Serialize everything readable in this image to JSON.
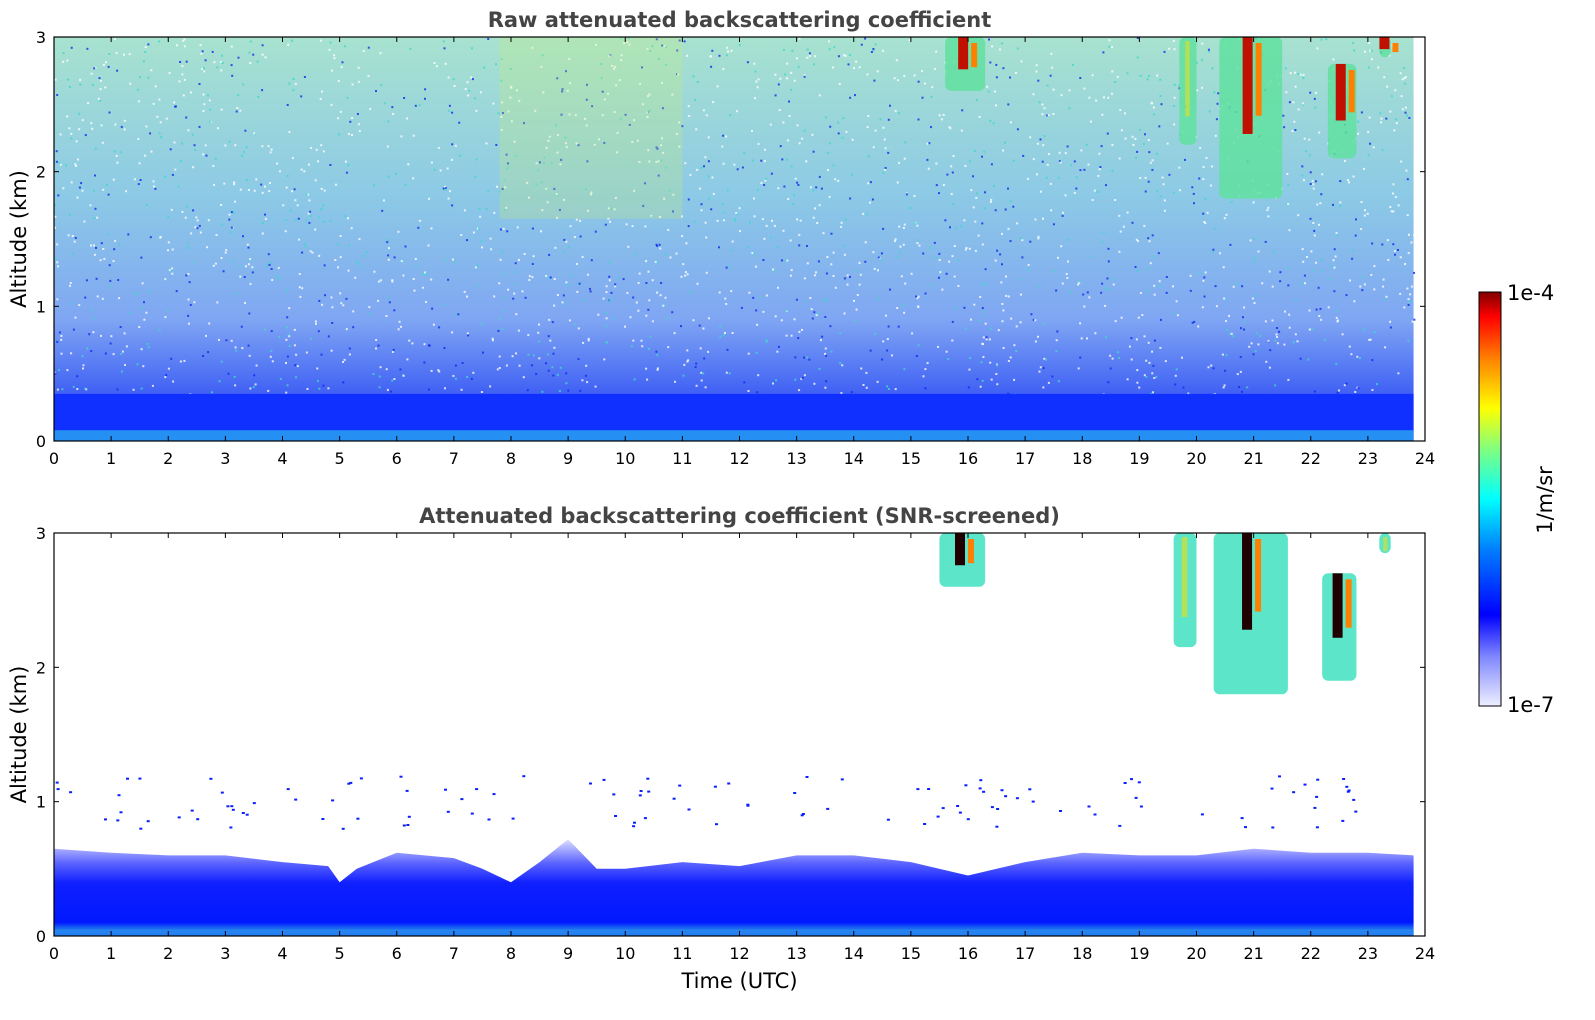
{
  "chart_data": [
    {
      "type": "heatmap",
      "title": "Raw attenuated backscattering coefficient",
      "xlabel": "",
      "ylabel": "Altitude (km)",
      "x_ticks": [
        "0",
        "1",
        "2",
        "3",
        "4",
        "5",
        "6",
        "7",
        "8",
        "9",
        "10",
        "11",
        "12",
        "13",
        "14",
        "15",
        "16",
        "17",
        "18",
        "19",
        "20",
        "21",
        "22",
        "23",
        "24"
      ],
      "y_ticks": [
        "0",
        "1",
        "2",
        "3"
      ],
      "xlim": [
        0,
        24
      ],
      "ylim": [
        0,
        3
      ],
      "data_extent_x": [
        0,
        23.8
      ],
      "colorbar": {
        "label": "1/m/sr",
        "min": "1e-7",
        "max": "1e-4",
        "scale": "log"
      },
      "features": [
        {
          "kind": "surface_layer",
          "x_range": [
            0,
            23.8
          ],
          "top_km": 0.35,
          "level": "~1e-6"
        },
        {
          "kind": "noise_background",
          "x_range": [
            0,
            23.8
          ],
          "alt_range_km": [
            0.35,
            3.0
          ],
          "level": "~1e-6 to 1e-5"
        },
        {
          "kind": "cloud",
          "x_range": [
            15.6,
            16.3
          ],
          "alt_range_km": [
            2.6,
            3.0
          ],
          "level": "~1e-4"
        },
        {
          "kind": "cloud",
          "x_range": [
            19.7,
            20.0
          ],
          "alt_range_km": [
            2.2,
            3.0
          ],
          "level": "~1e-5"
        },
        {
          "kind": "cloud",
          "x_range": [
            20.4,
            21.5
          ],
          "alt_range_km": [
            1.8,
            3.0
          ],
          "level": "~1e-5 to 1e-4"
        },
        {
          "kind": "cloud",
          "x_range": [
            22.3,
            22.8
          ],
          "alt_range_km": [
            2.1,
            2.8
          ],
          "level": "~1e-5 to 1e-4"
        },
        {
          "kind": "cloud",
          "x_range": [
            23.2,
            23.4
          ],
          "alt_range_km": [
            2.85,
            3.0
          ],
          "level": "~1e-4"
        }
      ]
    },
    {
      "type": "heatmap",
      "title": "Attenuated backscattering coefficient (SNR-screened)",
      "xlabel": "Time (UTC)",
      "ylabel": "Altitude (km)",
      "x_ticks": [
        "0",
        "1",
        "2",
        "3",
        "4",
        "5",
        "6",
        "7",
        "8",
        "9",
        "10",
        "11",
        "12",
        "13",
        "14",
        "15",
        "16",
        "17",
        "18",
        "19",
        "20",
        "21",
        "22",
        "23",
        "24"
      ],
      "y_ticks": [
        "0",
        "1",
        "2",
        "3"
      ],
      "xlim": [
        0,
        24
      ],
      "ylim": [
        0,
        3
      ],
      "data_extent_x": [
        0,
        23.8
      ],
      "colorbar": {
        "label": "1/m/sr",
        "min": "1e-7",
        "max": "1e-4",
        "scale": "log"
      },
      "boundary_layer_top_km": [
        [
          0,
          0.65
        ],
        [
          1,
          0.62
        ],
        [
          2,
          0.6
        ],
        [
          3,
          0.6
        ],
        [
          4,
          0.55
        ],
        [
          4.8,
          0.52
        ],
        [
          5.0,
          0.4
        ],
        [
          5.3,
          0.5
        ],
        [
          6,
          0.62
        ],
        [
          7,
          0.58
        ],
        [
          7.5,
          0.5
        ],
        [
          8.0,
          0.4
        ],
        [
          8.5,
          0.55
        ],
        [
          9.0,
          0.72
        ],
        [
          9.5,
          0.5
        ],
        [
          10,
          0.5
        ],
        [
          11,
          0.55
        ],
        [
          12,
          0.52
        ],
        [
          13,
          0.6
        ],
        [
          14,
          0.6
        ],
        [
          15,
          0.55
        ],
        [
          16,
          0.45
        ],
        [
          17,
          0.55
        ],
        [
          18,
          0.62
        ],
        [
          19,
          0.6
        ],
        [
          20,
          0.6
        ],
        [
          21,
          0.65
        ],
        [
          22,
          0.62
        ],
        [
          23,
          0.62
        ],
        [
          23.8,
          0.6
        ]
      ],
      "features": [
        {
          "kind": "cloud",
          "x_range": [
            15.5,
            16.3
          ],
          "alt_range_km": [
            2.6,
            3.0
          ],
          "level": "above 1e-4"
        },
        {
          "kind": "cloud",
          "x_range": [
            19.6,
            20.0
          ],
          "alt_range_km": [
            2.15,
            3.0
          ],
          "level": "~1e-5"
        },
        {
          "kind": "cloud",
          "x_range": [
            20.3,
            21.6
          ],
          "alt_range_km": [
            1.8,
            3.0
          ],
          "level": "~1e-5 to above 1e-4"
        },
        {
          "kind": "cloud",
          "x_range": [
            22.2,
            22.8
          ],
          "alt_range_km": [
            1.9,
            2.7
          ],
          "level": "~1e-5 to above 1e-4"
        },
        {
          "kind": "cloud",
          "x_range": [
            23.2,
            23.4
          ],
          "alt_range_km": [
            2.85,
            3.0
          ],
          "level": "~1e-5"
        }
      ]
    }
  ]
}
